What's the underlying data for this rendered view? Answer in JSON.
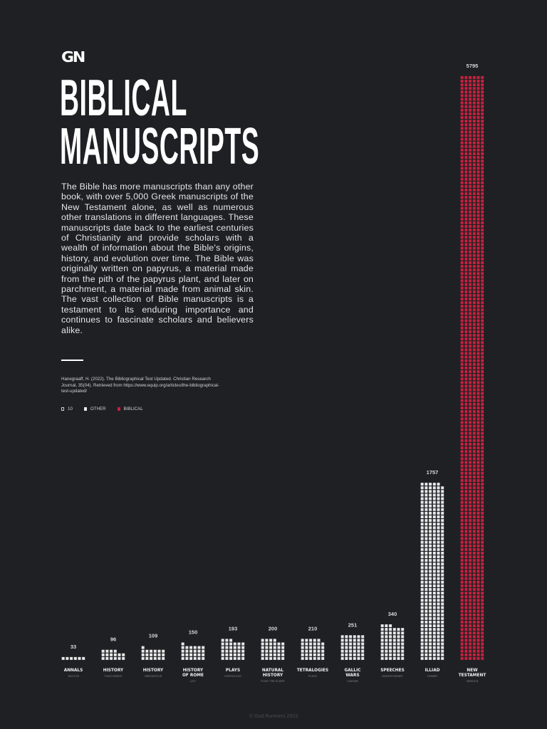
{
  "logo": "GN",
  "title": [
    "BIBLICAL",
    "MANUSCRIPTS"
  ],
  "body": "The Bible has more manuscripts than any other book, with over 5,000 Greek manuscripts of the New Testament alone, as well as numerous other translations in different languages. These manuscripts date back to the earliest centuries of Christianity and provide scholars with a wealth of information about the Bible's origins, history, and evolution over time. The Bible was originally written on papyrus, a material made from the pith of the papyrus plant, and later on parchment, a material made from animal skin. The vast collection of Bible manuscripts is a testament to its enduring importance and continues to fascinate scholars and believers alike.",
  "citation": "Hanegraaff, H. (2022). The Bibliographical Test Updated. Christian Research Journal, 35(04). Retrieved from https://www.equip.org/articles/the-bibliographical-test-updated/",
  "legend": {
    "unit_value": "10",
    "other": "OTHER",
    "biblical": "BIBLICAL"
  },
  "colors": {
    "other": "#e8e8e8",
    "biblical": "#c8203e",
    "background": "#1f2024"
  },
  "chart_data": {
    "type": "bar",
    "style": "pictogram",
    "categories": [
      "ANNALS",
      "HISTORY",
      "HISTORY",
      "HISTORY OF ROME",
      "PLAYS",
      "NATURAL HISTORY",
      "TETRALOGIES",
      "GALLIC WARS",
      "SPEECHES",
      "ILLIAD",
      "NEW TESTAMENT"
    ],
    "authors": [
      "TACITUS",
      "THUCYDIDES",
      "HERODOTUS",
      "LIVY",
      "SOPHOCLES",
      "PLINY THE ELDER",
      "PLATO",
      "CAESAR",
      "DEMOSTHENES",
      "HOMER",
      "VARIOUS"
    ],
    "values": [
      33,
      96,
      109,
      150,
      193,
      200,
      210,
      251,
      340,
      1757,
      5795
    ],
    "group": [
      "other",
      "other",
      "other",
      "other",
      "other",
      "other",
      "other",
      "other",
      "other",
      "other",
      "biblical"
    ]
  },
  "footer": "© God Rumners 2023"
}
